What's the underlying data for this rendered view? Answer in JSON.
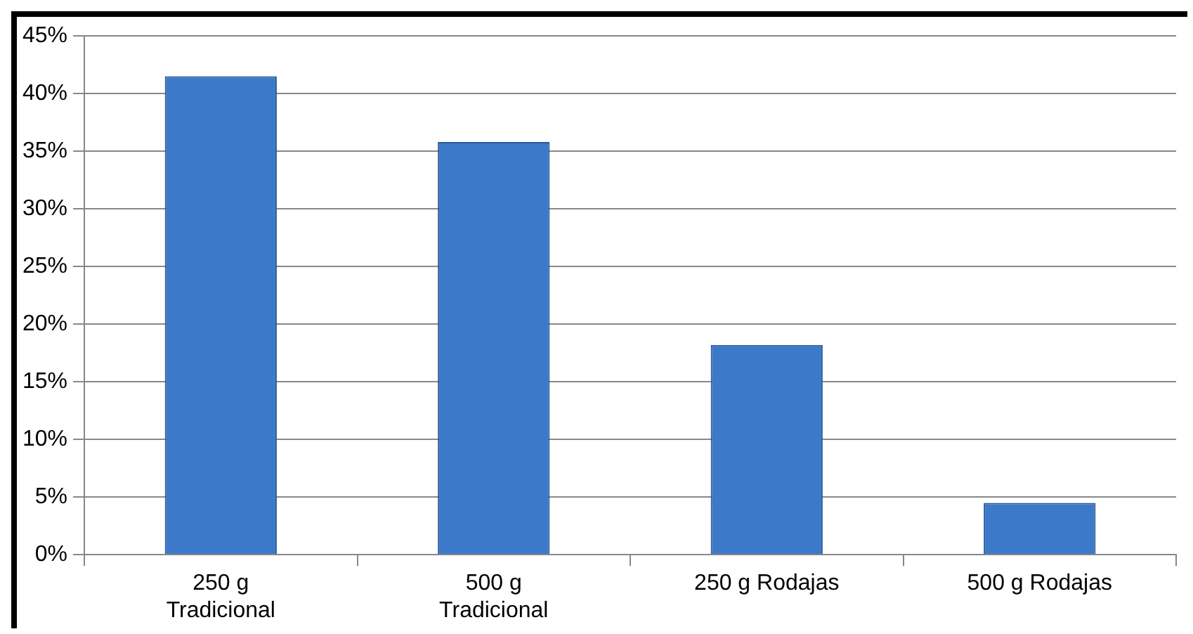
{
  "chart_data": {
    "type": "bar",
    "categories": [
      "250 g Tradicional",
      "500 g Tradicional",
      "250 g Rodajas",
      "500 g Rodajas"
    ],
    "values": [
      41.5,
      35.8,
      18.2,
      4.5
    ],
    "color": "#3d79c9",
    "ylim": [
      0,
      45
    ],
    "yticks": [
      {
        "value": 0,
        "label": "0%"
      },
      {
        "value": 5,
        "label": "5%"
      },
      {
        "value": 10,
        "label": "10%"
      },
      {
        "value": 15,
        "label": "15%"
      },
      {
        "value": 20,
        "label": "20%"
      },
      {
        "value": 25,
        "label": "25%"
      },
      {
        "value": 30,
        "label": "30%"
      },
      {
        "value": 35,
        "label": "35%"
      },
      {
        "value": 40,
        "label": "40%"
      },
      {
        "value": 45,
        "label": "45%"
      }
    ],
    "grid": "y",
    "legend": false
  }
}
